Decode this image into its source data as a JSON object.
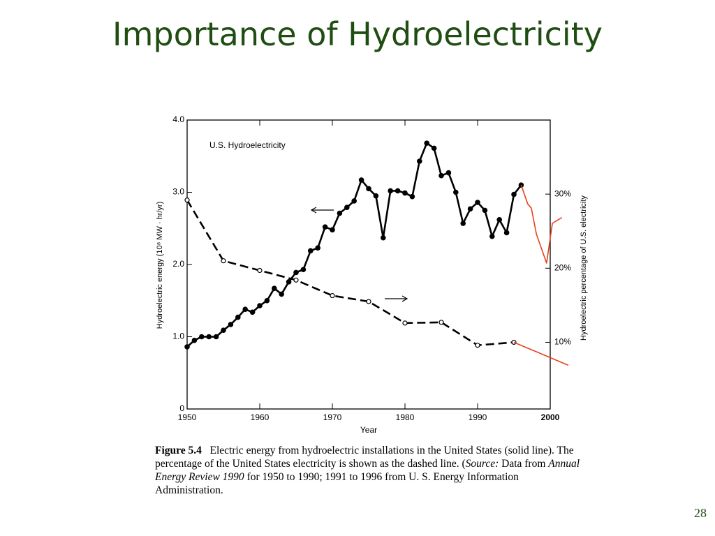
{
  "slide": {
    "title": "Importance of Hydroelectricity",
    "page": "28"
  },
  "chart_data": {
    "type": "line",
    "annotation": "U.S. Hydroelectricity",
    "xlabel": "Year",
    "ylabel": "Hydroelectric energy (10⁸ MW · hr/yr)",
    "y2label": "Hydroelectric percentage of U.S. electricity",
    "xlim": [
      1950,
      2000
    ],
    "xticks": [
      1950,
      1960,
      1970,
      1980,
      1990,
      2000
    ],
    "ylim": [
      0,
      4
    ],
    "yticks": [
      0,
      {
        "value": 1,
        "label": "1.0"
      },
      {
        "value": 2,
        "label": "2.0"
      },
      {
        "value": 3,
        "label": "3.0"
      },
      {
        "value": 4,
        "label": "4.0"
      }
    ],
    "y2lim": [
      1,
      40
    ],
    "y2ticks": [
      {
        "value": 10,
        "label": "10%"
      },
      {
        "value": 20,
        "label": "20%"
      },
      {
        "value": 30,
        "label": "30%"
      }
    ],
    "series": [
      {
        "color": "#000000",
        "line_style": "solid",
        "marker": "filled-circle",
        "x": [
          1950,
          1951,
          1952,
          1953,
          1954,
          1955,
          1956,
          1957,
          1958,
          1959,
          1960,
          1961,
          1962,
          1963,
          1964,
          1965,
          1966,
          1967,
          1968,
          1969,
          1970,
          1971,
          1972,
          1973,
          1974,
          1975,
          1976,
          1977,
          1978,
          1979,
          1980,
          1981,
          1982,
          1983,
          1984,
          1985,
          1986,
          1987,
          1988,
          1989,
          1990,
          1991,
          1992,
          1993,
          1994,
          1995,
          1996
        ],
        "values": [
          0.86,
          0.95,
          1.0,
          1.0,
          1.0,
          1.09,
          1.17,
          1.27,
          1.38,
          1.34,
          1.43,
          1.5,
          1.67,
          1.59,
          1.76,
          1.89,
          1.93,
          2.19,
          2.23,
          2.52,
          2.48,
          2.71,
          2.79,
          2.88,
          3.17,
          3.05,
          2.95,
          2.37,
          3.02,
          3.02,
          2.99,
          2.94,
          3.43,
          3.68,
          3.61,
          3.23,
          3.27,
          3.0,
          2.57,
          2.77,
          2.86,
          2.75,
          2.39,
          2.62,
          2.44,
          2.97,
          3.1
        ]
      },
      {
        "color": "#000000",
        "line_style": "dashed",
        "marker": "open-circle",
        "axis": "y2",
        "x": [
          1950,
          1955,
          1960,
          1965,
          1970,
          1975,
          1980,
          1985,
          1990,
          1995
        ],
        "values": [
          29.2,
          21.0,
          19.7,
          18.4,
          16.3,
          15.5,
          12.6,
          12.7,
          9.6,
          10.0
        ]
      },
      {
        "color": "#e8401c",
        "line_style": "solid",
        "marker": "none",
        "x": [
          1996,
          1996.9,
          1997.4,
          1998.1,
          1999.5,
          2000.3,
          2001.6
        ],
        "values": [
          3.1,
          2.84,
          2.78,
          2.42,
          2.02,
          2.57,
          2.65
        ]
      },
      {
        "color": "#e8401c",
        "line_style": "solid",
        "marker": "none",
        "axis": "y2",
        "x": [
          1995,
          2002.5
        ],
        "values": [
          10.0,
          6.9
        ]
      }
    ]
  },
  "caption": {
    "label": "Figure 5.4",
    "parts": [
      "Electric energy from hydroelectric installations in the United States (solid line). The percentage of the United States electricity is shown as the dashed line. (",
      "Source:",
      " Data from ",
      "Annual Energy Review 1990",
      " for 1950 to 1990; 1991 to 1996 from U. S. Energy Information Administration."
    ]
  }
}
